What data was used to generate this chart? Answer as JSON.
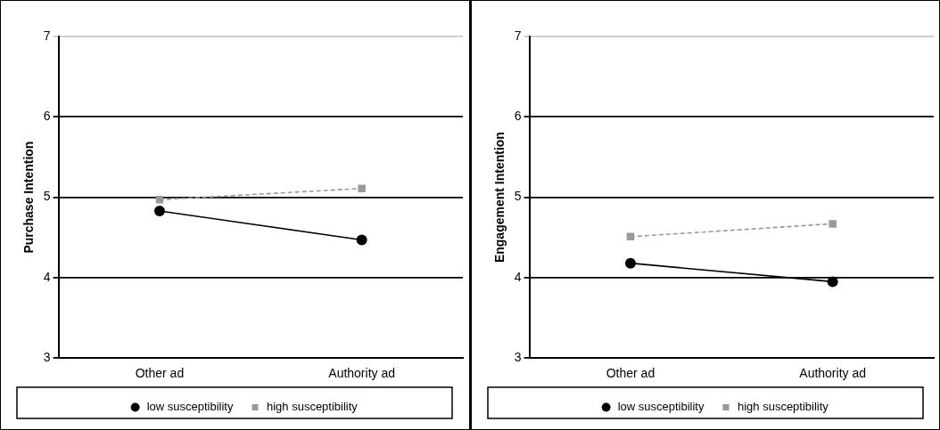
{
  "chart_data": [
    {
      "type": "line",
      "ylabel": "Purchase Intention",
      "categories": [
        "Other ad",
        "Authority ad"
      ],
      "ylim": [
        3,
        7
      ],
      "yticks": [
        3,
        4,
        5,
        6,
        7
      ],
      "grid": "y",
      "legend": "bottom",
      "series": [
        {
          "name": "low susceptibility",
          "color": "#000000",
          "values": [
            4.83,
            4.47
          ],
          "marker": "circle",
          "line_style": "solid"
        },
        {
          "name": "high susceptibility",
          "color": "#999999",
          "values": [
            4.97,
            5.11
          ],
          "marker": "square",
          "line_style": "dashed"
        }
      ]
    },
    {
      "type": "line",
      "ylabel": "Engagement Intention",
      "categories": [
        "Other ad",
        "Authority ad"
      ],
      "ylim": [
        3,
        7
      ],
      "yticks": [
        3,
        4,
        5,
        6,
        7
      ],
      "grid": "y",
      "legend": "bottom",
      "series": [
        {
          "name": "low susceptibility",
          "color": "#000000",
          "values": [
            4.18,
            3.95
          ],
          "marker": "circle",
          "line_style": "solid"
        },
        {
          "name": "high susceptibility",
          "color": "#999999",
          "values": [
            4.51,
            4.67
          ],
          "marker": "square",
          "line_style": "dashed"
        }
      ]
    }
  ]
}
